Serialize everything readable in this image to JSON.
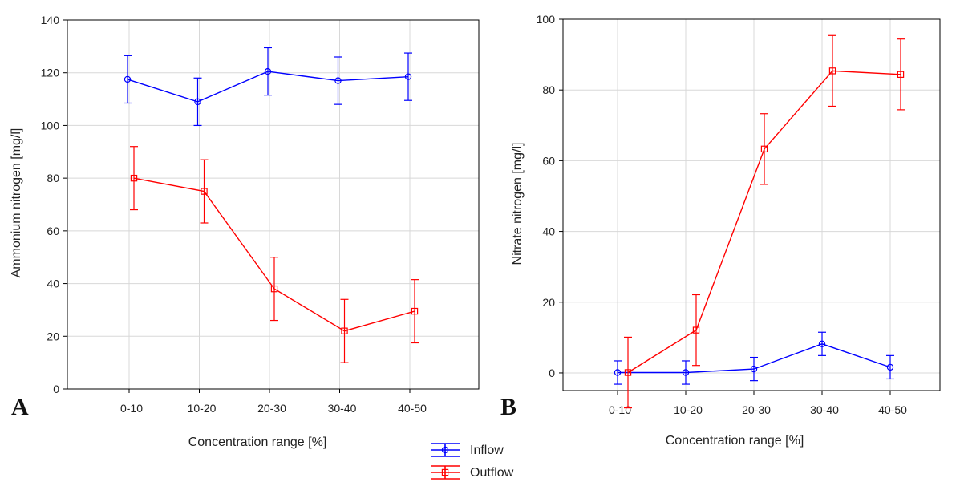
{
  "chart_data": [
    {
      "panel": "A",
      "type": "line",
      "categories": [
        "0-10",
        "10-20",
        "20-30",
        "30-40",
        "40-50"
      ],
      "xlabel": "Concentration range [%]",
      "ylabel": "Ammonium nitrogen [mg/l]",
      "ylim": [
        0,
        140
      ],
      "yticks": [
        0,
        20,
        40,
        60,
        80,
        100,
        120,
        140
      ],
      "grid": true,
      "series": [
        {
          "name": "Inflow",
          "color": "#0000ff",
          "marker": "circle",
          "values": [
            117.5,
            109,
            120.5,
            117,
            118.5
          ],
          "errors": [
            9,
            9,
            9,
            9,
            9
          ]
        },
        {
          "name": "Outflow",
          "color": "#ff0000",
          "marker": "square",
          "values": [
            80,
            75,
            38,
            22,
            29.5
          ],
          "errors": [
            12,
            12,
            12,
            12,
            12
          ]
        }
      ]
    },
    {
      "panel": "B",
      "type": "line",
      "categories": [
        "0-10",
        "10-20",
        "20-30",
        "30-40",
        "40-50"
      ],
      "xlabel": "Concentration range [%]",
      "ylabel": "Nitrate nitrogen [mg/l]",
      "ylim": [
        -5,
        100
      ],
      "yticks": [
        0,
        20,
        40,
        60,
        80,
        100
      ],
      "grid": true,
      "series": [
        {
          "name": "Inflow",
          "color": "#0000ff",
          "marker": "circle",
          "values": [
            0.1,
            0.1,
            1.1,
            8.2,
            1.6
          ],
          "errors": [
            3.3,
            3.3,
            3.3,
            3.3,
            3.3
          ]
        },
        {
          "name": "Outflow",
          "color": "#ff0000",
          "marker": "square",
          "values": [
            0.1,
            12.1,
            63.3,
            85.4,
            84.4
          ],
          "errors": [
            10,
            10,
            10,
            10,
            10
          ]
        }
      ]
    }
  ],
  "legend": {
    "placement": "bottom-center",
    "items": [
      {
        "label": "Inflow",
        "color": "#0000ff",
        "marker": "circle"
      },
      {
        "label": "Outflow",
        "color": "#ff0000",
        "marker": "square"
      }
    ]
  }
}
